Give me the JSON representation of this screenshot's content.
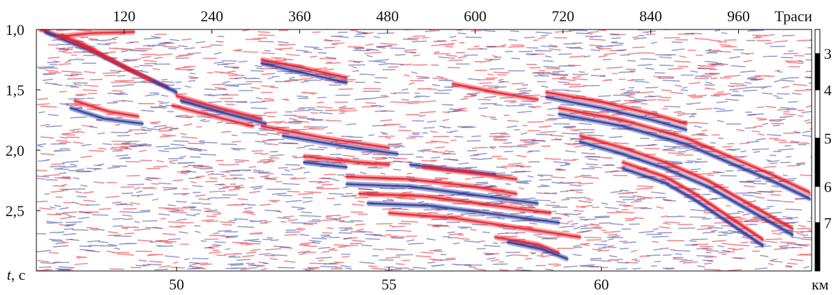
{
  "chart_data": {
    "type": "heatmap",
    "description_units": {
      "x_top": "Траси",
      "x_bottom": "км",
      "y_left_prefix": "t",
      "y_left_unit": ", с"
    },
    "top_axis": {
      "label": "Траси",
      "ticks": [
        "120",
        "240",
        "360",
        "480",
        "600",
        "720",
        "840",
        "960"
      ],
      "tick_values": [
        120,
        240,
        360,
        480,
        600,
        720,
        840,
        960
      ],
      "range": [
        0,
        1060
      ]
    },
    "bottom_axis": {
      "label": "км",
      "ticks": [
        "50",
        "55",
        "60"
      ],
      "tick_values": [
        50,
        55,
        60
      ],
      "range": [
        46.7,
        64.95
      ]
    },
    "left_axis": {
      "label_italic": "t",
      "label_rest": ", с",
      "ticks": [
        "1,0",
        "1,5",
        "2,0",
        "2,5"
      ],
      "tick_values": [
        1.0,
        1.5,
        2.0,
        2.5
      ],
      "range": [
        1.0,
        3.0
      ]
    },
    "right_scale": {
      "labels": [
        "3",
        "4",
        "5",
        "6",
        "7"
      ],
      "segments": [
        {
          "from": 1.0,
          "to": 1.2,
          "fill": "white"
        },
        {
          "from": 1.2,
          "to": 1.5,
          "fill": "black"
        },
        {
          "from": 1.5,
          "to": 1.9,
          "fill": "white"
        },
        {
          "from": 1.9,
          "to": 2.3,
          "fill": "black"
        },
        {
          "from": 2.3,
          "to": 2.6,
          "fill": "white"
        },
        {
          "from": 2.6,
          "to": 3.0,
          "fill": "black"
        }
      ]
    },
    "colors": {
      "positive": "#e8202a",
      "negative": "#2a3a9c",
      "background": "#ffffff"
    },
    "reflectors": [
      {
        "polarity": "red",
        "points": [
          [
            46.8,
            1.0
          ],
          [
            47.8,
            1.12
          ],
          [
            48.8,
            1.32
          ],
          [
            49.8,
            1.48
          ]
        ]
      },
      {
        "polarity": "blue",
        "points": [
          [
            46.9,
            1.02
          ],
          [
            48.0,
            1.18
          ],
          [
            49.0,
            1.35
          ],
          [
            50.0,
            1.52
          ]
        ]
      },
      {
        "polarity": "red",
        "points": [
          [
            47.3,
            1.05
          ],
          [
            48.4,
            1.24
          ],
          [
            49.4,
            1.42
          ]
        ]
      },
      {
        "polarity": "red",
        "points": [
          [
            50.0,
            1.55
          ],
          [
            51.0,
            1.65
          ],
          [
            52.0,
            1.74
          ]
        ]
      },
      {
        "polarity": "blue",
        "points": [
          [
            50.1,
            1.59
          ],
          [
            51.1,
            1.69
          ],
          [
            52.1,
            1.78
          ]
        ]
      },
      {
        "polarity": "red",
        "points": [
          [
            49.9,
            1.63
          ],
          [
            51.0,
            1.73
          ],
          [
            51.8,
            1.8
          ]
        ]
      },
      {
        "polarity": "red",
        "points": [
          [
            47.6,
            1.59
          ],
          [
            48.4,
            1.68
          ],
          [
            49.1,
            1.72
          ]
        ]
      },
      {
        "polarity": "blue",
        "points": [
          [
            47.5,
            1.65
          ],
          [
            48.3,
            1.74
          ],
          [
            49.2,
            1.78
          ]
        ]
      },
      {
        "polarity": "red",
        "points": [
          [
            52.0,
            1.8
          ],
          [
            53.5,
            1.9
          ],
          [
            55.0,
            1.98
          ]
        ]
      },
      {
        "polarity": "blue",
        "points": [
          [
            52.5,
            1.88
          ],
          [
            54.0,
            1.97
          ],
          [
            55.2,
            2.03
          ]
        ]
      },
      {
        "polarity": "red",
        "points": [
          [
            53.0,
            2.05
          ],
          [
            54.0,
            2.09
          ],
          [
            55.0,
            2.12
          ]
        ]
      },
      {
        "polarity": "blue",
        "points": [
          [
            53.0,
            2.1
          ],
          [
            54.0,
            2.14
          ]
        ]
      },
      {
        "polarity": "red",
        "points": [
          [
            54.0,
            2.22
          ],
          [
            55.5,
            2.24
          ],
          [
            57.0,
            2.3
          ],
          [
            58.0,
            2.36
          ]
        ]
      },
      {
        "polarity": "blue",
        "points": [
          [
            54.0,
            2.28
          ],
          [
            55.5,
            2.3
          ],
          [
            57.0,
            2.37
          ],
          [
            58.5,
            2.44
          ]
        ]
      },
      {
        "polarity": "red",
        "points": [
          [
            54.3,
            2.36
          ],
          [
            55.8,
            2.38
          ],
          [
            57.3,
            2.45
          ],
          [
            58.8,
            2.52
          ]
        ]
      },
      {
        "polarity": "blue",
        "points": [
          [
            54.5,
            2.44
          ],
          [
            56.0,
            2.46
          ],
          [
            57.5,
            2.53
          ],
          [
            59.0,
            2.6
          ]
        ]
      },
      {
        "polarity": "red",
        "points": [
          [
            55.0,
            2.52
          ],
          [
            56.5,
            2.56
          ],
          [
            58.0,
            2.64
          ],
          [
            59.5,
            2.72
          ]
        ]
      },
      {
        "polarity": "blue",
        "points": [
          [
            55.5,
            2.12
          ],
          [
            56.5,
            2.16
          ],
          [
            57.5,
            2.2
          ]
        ]
      },
      {
        "polarity": "red",
        "points": [
          [
            55.8,
            2.14
          ],
          [
            57.0,
            2.19
          ],
          [
            58.0,
            2.24
          ]
        ]
      },
      {
        "polarity": "red",
        "points": [
          [
            58.7,
            1.52
          ],
          [
            60.0,
            1.6
          ],
          [
            61.2,
            1.7
          ],
          [
            62.0,
            1.78
          ]
        ]
      },
      {
        "polarity": "blue",
        "points": [
          [
            58.7,
            1.56
          ],
          [
            60.0,
            1.65
          ],
          [
            61.2,
            1.75
          ],
          [
            62.0,
            1.83
          ]
        ]
      },
      {
        "polarity": "red",
        "points": [
          [
            59.0,
            1.65
          ],
          [
            60.5,
            1.75
          ],
          [
            62.0,
            1.9
          ],
          [
            63.0,
            2.05
          ],
          [
            64.0,
            2.2
          ],
          [
            64.9,
            2.35
          ]
        ]
      },
      {
        "polarity": "blue",
        "points": [
          [
            59.0,
            1.7
          ],
          [
            60.5,
            1.8
          ],
          [
            62.0,
            1.95
          ],
          [
            63.0,
            2.1
          ],
          [
            64.0,
            2.25
          ],
          [
            64.9,
            2.4
          ]
        ]
      },
      {
        "polarity": "red",
        "points": [
          [
            59.5,
            1.88
          ],
          [
            60.5,
            1.98
          ],
          [
            61.5,
            2.1
          ],
          [
            62.5,
            2.25
          ],
          [
            63.5,
            2.45
          ],
          [
            64.5,
            2.65
          ]
        ]
      },
      {
        "polarity": "blue",
        "points": [
          [
            59.5,
            1.93
          ],
          [
            60.5,
            2.03
          ],
          [
            61.5,
            2.15
          ],
          [
            62.5,
            2.3
          ],
          [
            63.5,
            2.5
          ],
          [
            64.5,
            2.7
          ]
        ]
      },
      {
        "polarity": "red",
        "points": [
          [
            60.5,
            2.1
          ],
          [
            61.5,
            2.22
          ],
          [
            62.2,
            2.36
          ],
          [
            63.0,
            2.55
          ],
          [
            63.8,
            2.74
          ]
        ]
      },
      {
        "polarity": "blue",
        "points": [
          [
            60.5,
            2.15
          ],
          [
            61.5,
            2.27
          ],
          [
            62.2,
            2.41
          ],
          [
            63.0,
            2.6
          ],
          [
            63.8,
            2.79
          ]
        ]
      },
      {
        "polarity": "red",
        "points": [
          [
            52.0,
            1.25
          ],
          [
            53.0,
            1.32
          ],
          [
            54.0,
            1.4
          ]
        ]
      },
      {
        "polarity": "blue",
        "points": [
          [
            52.0,
            1.28
          ],
          [
            53.0,
            1.36
          ],
          [
            54.0,
            1.44
          ]
        ]
      },
      {
        "polarity": "red",
        "points": [
          [
            56.5,
            1.45
          ],
          [
            57.5,
            1.52
          ],
          [
            58.5,
            1.58
          ]
        ]
      },
      {
        "polarity": "red",
        "points": [
          [
            57.5,
            2.72
          ],
          [
            58.5,
            2.78
          ],
          [
            59.0,
            2.85
          ]
        ]
      },
      {
        "polarity": "blue",
        "points": [
          [
            57.8,
            2.76
          ],
          [
            58.6,
            2.82
          ],
          [
            59.2,
            2.9
          ]
        ]
      },
      {
        "polarity": "red",
        "points": [
          [
            47.2,
            1.06
          ],
          [
            48.0,
            1.03
          ],
          [
            49.0,
            1.02
          ]
        ]
      }
    ]
  }
}
